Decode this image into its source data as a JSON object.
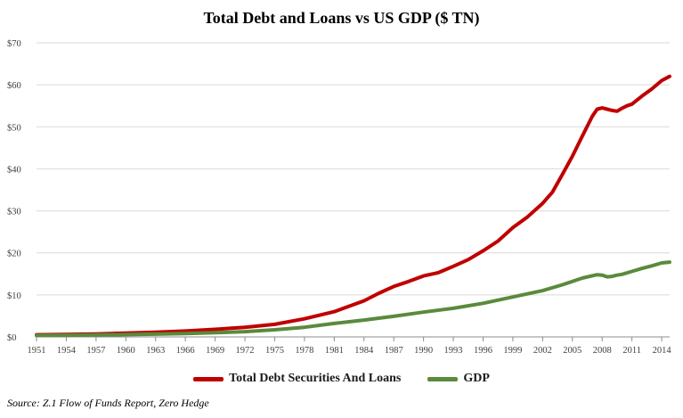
{
  "chart_data": {
    "type": "line",
    "title": "Total Debt and Loans vs US GDP ($ TN)",
    "xlabel": "",
    "ylabel": "",
    "xlim": [
      1951,
      2014.8
    ],
    "ylim": [
      0,
      70
    ],
    "grid": "horizontal",
    "legend_position": "bottom-center",
    "y_ticks": [
      0,
      10,
      20,
      30,
      40,
      50,
      60,
      70
    ],
    "y_tick_labels": [
      "$0",
      "$10",
      "$20",
      "$30",
      "$40",
      "$50",
      "$60",
      "$70"
    ],
    "x_ticks": [
      1951,
      1954,
      1957,
      1960,
      1963,
      1966,
      1969,
      1972,
      1975,
      1978,
      1981,
      1984,
      1987,
      1990,
      1993,
      1996,
      1999,
      2002,
      2005,
      2008,
      2011,
      2014
    ],
    "x_tick_labels": [
      "1951",
      "1954",
      "1957",
      "1960",
      "1963",
      "1966",
      "1969",
      "1972",
      "1975",
      "1978",
      "1981",
      "1984",
      "1987",
      "1990",
      "1993",
      "1996",
      "1999",
      "2002",
      "2005",
      "2008",
      "2011",
      "2014"
    ],
    "series": [
      {
        "name": "Total Debt Securities And Loans",
        "color": "#c00000",
        "x": [
          1951,
          1954,
          1957,
          1960,
          1963,
          1966,
          1969,
          1972,
          1975,
          1978,
          1981,
          1984,
          1985.5,
          1987,
          1988.5,
          1990,
          1991.5,
          1993,
          1994.5,
          1996,
          1997.5,
          1999,
          2000.5,
          2002,
          2003,
          2004,
          2005,
          2006,
          2007,
          2007.5,
          2008,
          2008.5,
          2009,
          2009.5,
          2010,
          2010.5,
          2011,
          2012,
          2013,
          2014,
          2014.8
        ],
        "values": [
          0.5,
          0.6,
          0.7,
          0.9,
          1.1,
          1.4,
          1.8,
          2.3,
          3.0,
          4.3,
          6.0,
          8.6,
          10.4,
          12.0,
          13.2,
          14.5,
          15.3,
          16.8,
          18.4,
          20.5,
          22.8,
          26.0,
          28.6,
          31.8,
          34.5,
          38.7,
          43.0,
          47.8,
          52.5,
          54.2,
          54.5,
          54.2,
          53.9,
          53.7,
          54.4,
          55.0,
          55.4,
          57.3,
          59.0,
          61.0,
          62.0
        ]
      },
      {
        "name": "GDP",
        "color": "#5a8a3c",
        "x": [
          1951,
          1954,
          1957,
          1960,
          1963,
          1966,
          1969,
          1972,
          1975,
          1978,
          1981,
          1984,
          1987,
          1990,
          1993,
          1996,
          1999,
          2002,
          2004,
          2006,
          2007.5,
          2008,
          2008.5,
          2009,
          2009.5,
          2010,
          2011,
          2012,
          2013,
          2014,
          2014.8
        ],
        "values": [
          0.35,
          0.4,
          0.47,
          0.55,
          0.65,
          0.8,
          1.0,
          1.25,
          1.7,
          2.3,
          3.2,
          4.0,
          4.9,
          5.9,
          6.8,
          8.0,
          9.5,
          11.0,
          12.4,
          14.0,
          14.8,
          14.7,
          14.3,
          14.4,
          14.7,
          14.9,
          15.6,
          16.3,
          16.9,
          17.6,
          17.8
        ]
      }
    ]
  },
  "legend": {
    "items": [
      {
        "label": "Total Debt Securities And Loans",
        "color": "#c00000"
      },
      {
        "label": "GDP",
        "color": "#5a8a3c"
      }
    ]
  },
  "source": "Source: Z.1 Flow of Funds Report, Zero Hedge"
}
